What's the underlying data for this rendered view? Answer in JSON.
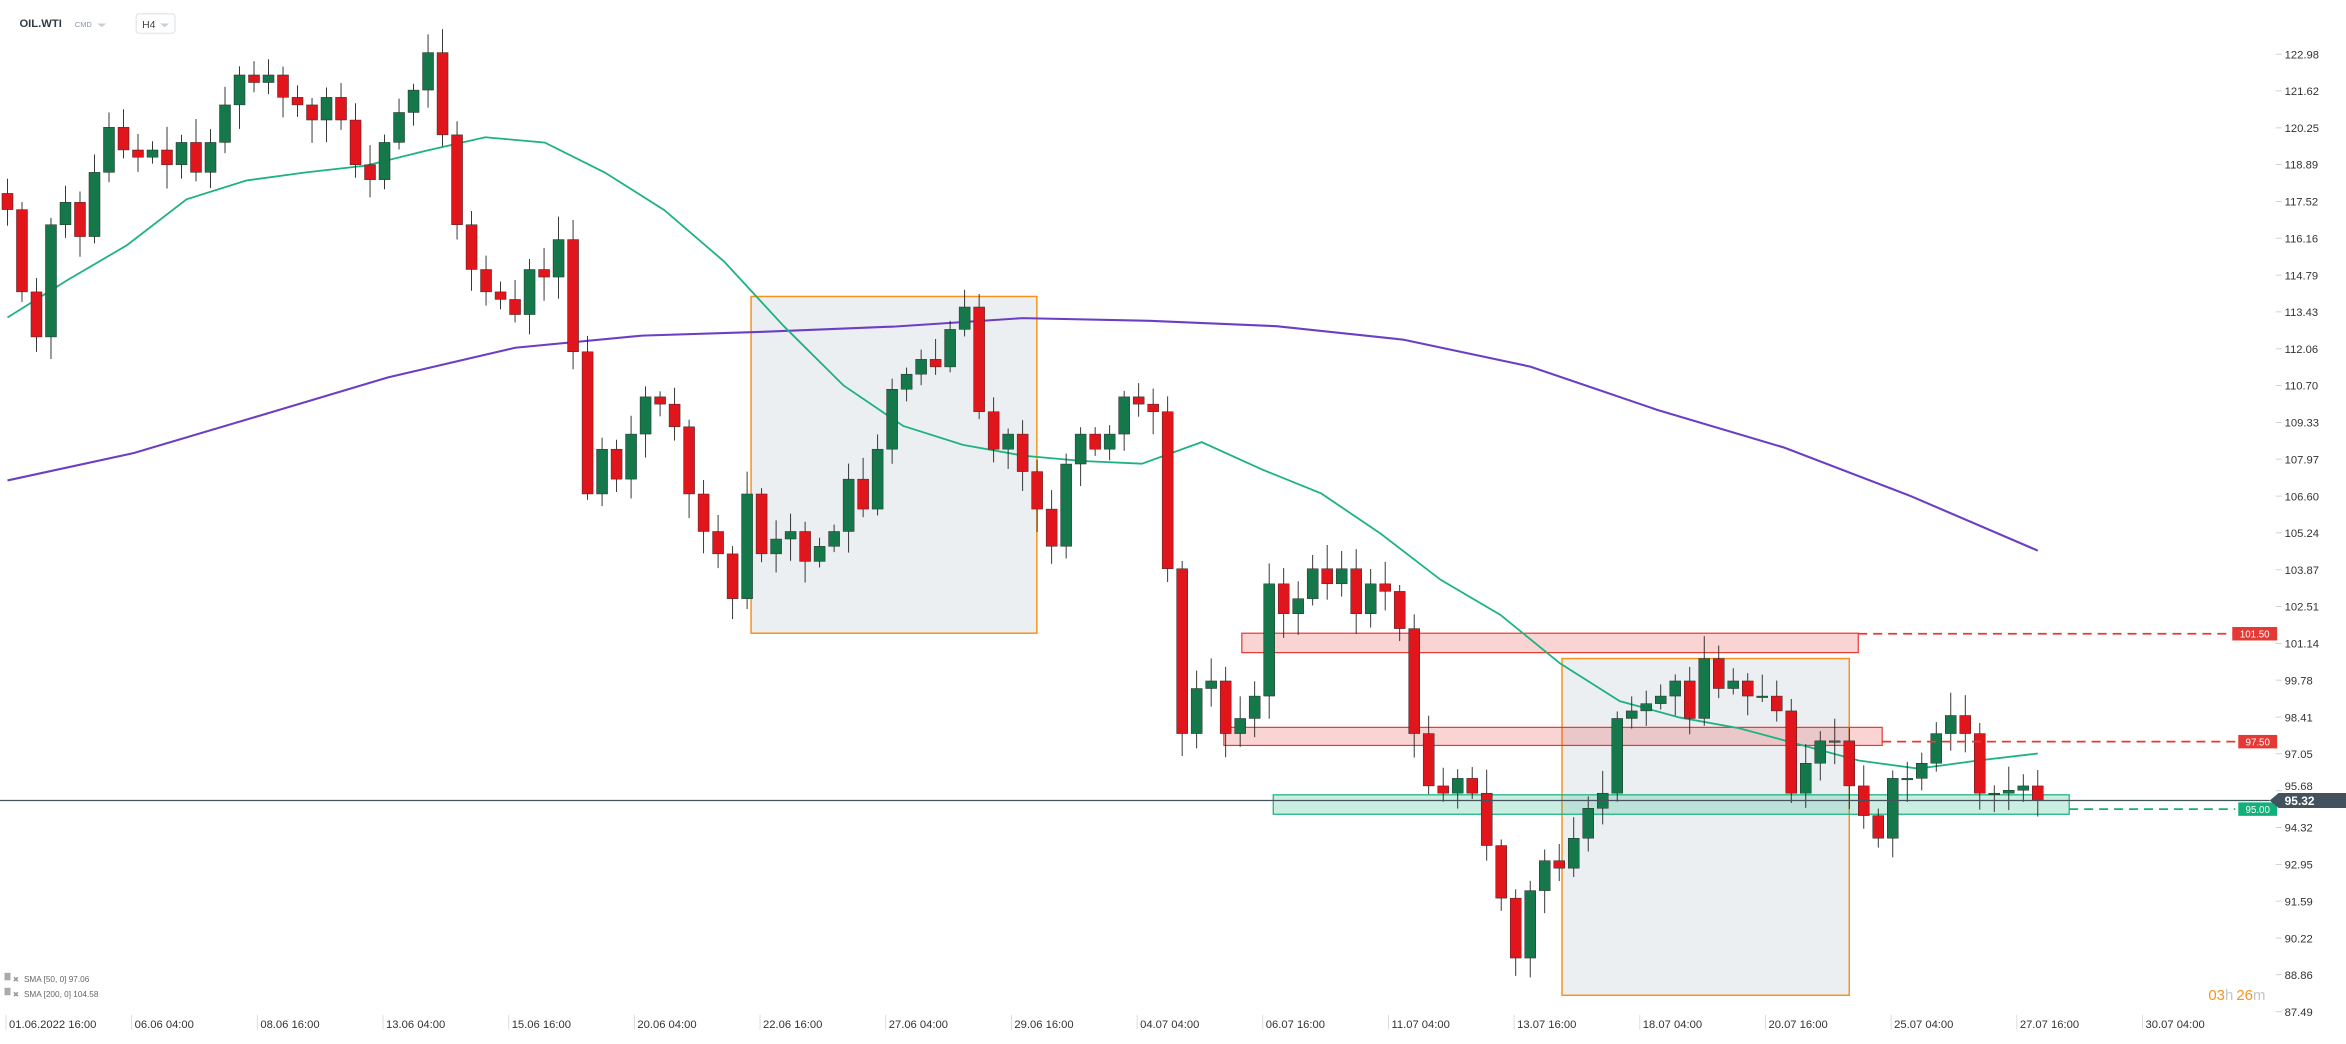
{
  "header": {
    "symbol": "OIL.WTI",
    "category": "CMD",
    "timeframe": "H4"
  },
  "colors": {
    "bull": "#15784b",
    "bear": "#e0161c",
    "sma50": "#1db380",
    "sma200": "#6b3fc4",
    "box_stroke": "#f7931e",
    "box_fill": "#dfe4ea",
    "resistance": "#e53935",
    "support": "#12b07a",
    "price_tag": "#44525e"
  },
  "price_axis": [
    "122.98",
    "121.62",
    "120.25",
    "118.89",
    "117.52",
    "116.16",
    "114.79",
    "113.43",
    "112.06",
    "110.70",
    "109.33",
    "107.97",
    "106.60",
    "105.24",
    "103.87",
    "102.51",
    "101.14",
    "99.78",
    "98.41",
    "97.05",
    "95.68",
    "94.32",
    "92.95",
    "91.59",
    "90.22",
    "88.86",
    "87.49"
  ],
  "time_axis": [
    "01.06.2022  16:00",
    "06.06  04:00",
    "08.06  16:00",
    "13.06  04:00",
    "15.06  16:00",
    "20.06  04:00",
    "22.06  16:00",
    "27.06  04:00",
    "29.06  16:00",
    "04.07  04:00",
    "06.07  16:00",
    "11.07  04:00",
    "13.07  16:00",
    "18.07  04:00",
    "20.07  16:00",
    "25.07  04:00",
    "27.07  16:00",
    "30.07  04:00"
  ],
  "levels": {
    "resistance_1": {
      "price": 101.5,
      "label": "101.50",
      "zone": [
        100.8,
        101.52
      ]
    },
    "resistance_2": {
      "price": 97.5,
      "label": "97.50",
      "zone": [
        97.36,
        98.03
      ]
    },
    "support_1": {
      "price": 95.0,
      "label": "95.00",
      "zone": [
        94.81,
        95.53
      ]
    },
    "current_price": {
      "price": 95.32,
      "label": "95.32"
    }
  },
  "boxes": [
    {
      "top": 114.0,
      "bottom": 101.52
    },
    {
      "top": 100.58,
      "bottom": 88.1
    }
  ],
  "countdown": {
    "hours": "03",
    "h": "h",
    "minutes": "26",
    "m": "m"
  },
  "legend": [
    {
      "label": "SMA [50, 0] 97.06"
    },
    {
      "label": "SMA [200, 0] 104.58"
    }
  ],
  "chart_data": {
    "type": "candlestick",
    "ylim": [
      87.49,
      122.98
    ],
    "closes": [
      117.22,
      114.17,
      112.5,
      116.66,
      117.49,
      116.22,
      118.6,
      120.27,
      119.43,
      119.16,
      119.43,
      118.88,
      119.71,
      118.6,
      119.71,
      121.1,
      122.21,
      121.93,
      122.21,
      121.38,
      121.1,
      120.54,
      121.38,
      120.54,
      118.88,
      118.33,
      119.71,
      120.82,
      121.65,
      123.04,
      119.99,
      116.66,
      115.0,
      114.17,
      113.89,
      113.33,
      115.0,
      114.72,
      116.11,
      111.95,
      106.68,
      108.34,
      107.23,
      108.9,
      110.28,
      110.01,
      109.17,
      106.68,
      105.29,
      104.46,
      102.8,
      106.68,
      104.46,
      105.01,
      105.29,
      104.18,
      104.74,
      105.29,
      107.23,
      106.12,
      108.34,
      110.56,
      111.12,
      111.67,
      111.39,
      112.78,
      113.61,
      109.73,
      108.34,
      108.9,
      107.51,
      106.12,
      104.74,
      107.79,
      108.9,
      108.34,
      108.9,
      110.28,
      110.01,
      109.73,
      103.91,
      97.8,
      99.47,
      99.75,
      97.8,
      98.36,
      99.19,
      103.35,
      102.24,
      102.8,
      103.91,
      103.35,
      103.91,
      102.24,
      103.35,
      103.07,
      101.69,
      97.8,
      95.86,
      95.59,
      96.14,
      95.59,
      93.65,
      91.7,
      89.48,
      91.98,
      93.09,
      92.81,
      93.92,
      95.03,
      95.59,
      98.36,
      98.64,
      98.91,
      99.19,
      99.75,
      98.36,
      100.58,
      99.47,
      99.75,
      99.19,
      99.19,
      98.64,
      95.59,
      96.7,
      97.53,
      97.53,
      95.86,
      94.76,
      93.92,
      96.14,
      96.14,
      96.7,
      97.8,
      98.47,
      97.8,
      95.59,
      95.59,
      95.7,
      95.86,
      95.32
    ],
    "sma50": [
      113.22,
      114.6,
      115.9,
      117.6,
      118.3,
      118.6,
      118.85,
      119.4,
      119.9,
      119.7,
      118.6,
      117.2,
      115.3,
      112.9,
      110.7,
      109.2,
      108.5,
      108.1,
      107.9,
      107.8,
      108.6,
      107.6,
      106.7,
      105.2,
      103.5,
      102.2,
      100.4,
      99.0,
      98.4,
      98.0,
      97.4,
      96.8,
      96.5,
      96.8,
      97.06
    ],
    "sma200": [
      107.18,
      108.2,
      109.6,
      111.0,
      112.1,
      112.55,
      112.7,
      112.89,
      113.2,
      113.1,
      112.9,
      112.4,
      111.4,
      109.8,
      108.4,
      106.6,
      104.58
    ]
  }
}
